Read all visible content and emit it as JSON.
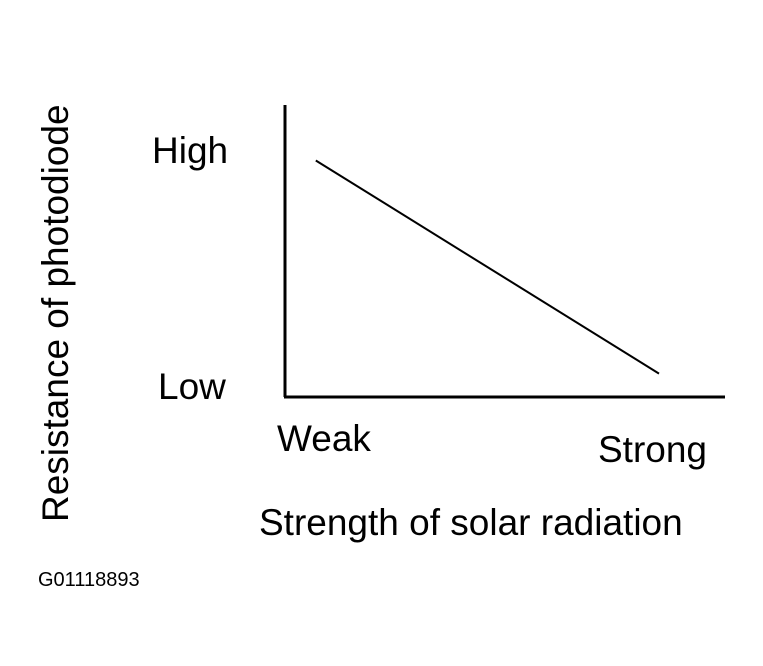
{
  "chart_data": {
    "type": "line",
    "title": "",
    "xlabel": "Strength of solar radiation",
    "ylabel": "Resistance of photodiode",
    "x_tick_labels": [
      "Weak",
      "Strong"
    ],
    "y_tick_labels": [
      "High",
      "Low"
    ],
    "xlim": [
      0,
      1
    ],
    "ylim": [
      0,
      1
    ],
    "grid": false,
    "series": [
      {
        "x": [
          0.07,
          0.85
        ],
        "y": [
          0.81,
          0.08
        ]
      }
    ]
  },
  "figure": {
    "id": "G01118893"
  },
  "colors": {
    "line": "#000000",
    "axis": "#000000",
    "background": "#ffffff"
  }
}
